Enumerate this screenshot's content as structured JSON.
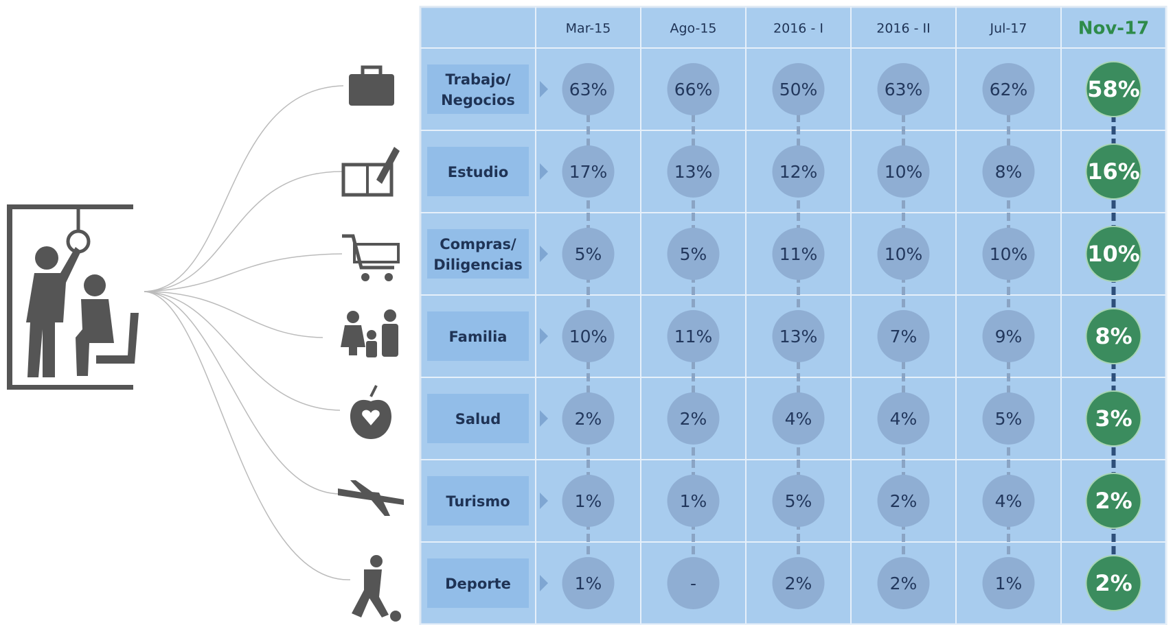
{
  "table": {
    "columns": [
      "Mar-15",
      "Ago-15",
      "2016 - I",
      "2016 - II",
      "Jul-17",
      "Nov-17"
    ],
    "rows": [
      {
        "label": [
          "Trabajo/",
          "Negocios"
        ],
        "values": [
          "63%",
          "66%",
          "50%",
          "63%",
          "62%",
          "58%"
        ]
      },
      {
        "label": [
          "Estudio"
        ],
        "values": [
          "17%",
          "13%",
          "12%",
          "10%",
          "8%",
          "16%"
        ]
      },
      {
        "label": [
          "Compras/",
          "Diligencias"
        ],
        "values": [
          "5%",
          "5%",
          "11%",
          "10%",
          "10%",
          "10%"
        ]
      },
      {
        "label": [
          "Familia"
        ],
        "values": [
          "10%",
          "11%",
          "13%",
          "7%",
          "9%",
          "8%"
        ]
      },
      {
        "label": [
          "Salud"
        ],
        "values": [
          "2%",
          "2%",
          "4%",
          "4%",
          "5%",
          "3%"
        ]
      },
      {
        "label": [
          "Turismo"
        ],
        "values": [
          "1%",
          "1%",
          "5%",
          "2%",
          "4%",
          "2%"
        ]
      },
      {
        "label": [
          "Deporte"
        ],
        "values": [
          "1%",
          "-",
          "2%",
          "2%",
          "1%",
          "2%"
        ]
      }
    ]
  }
}
